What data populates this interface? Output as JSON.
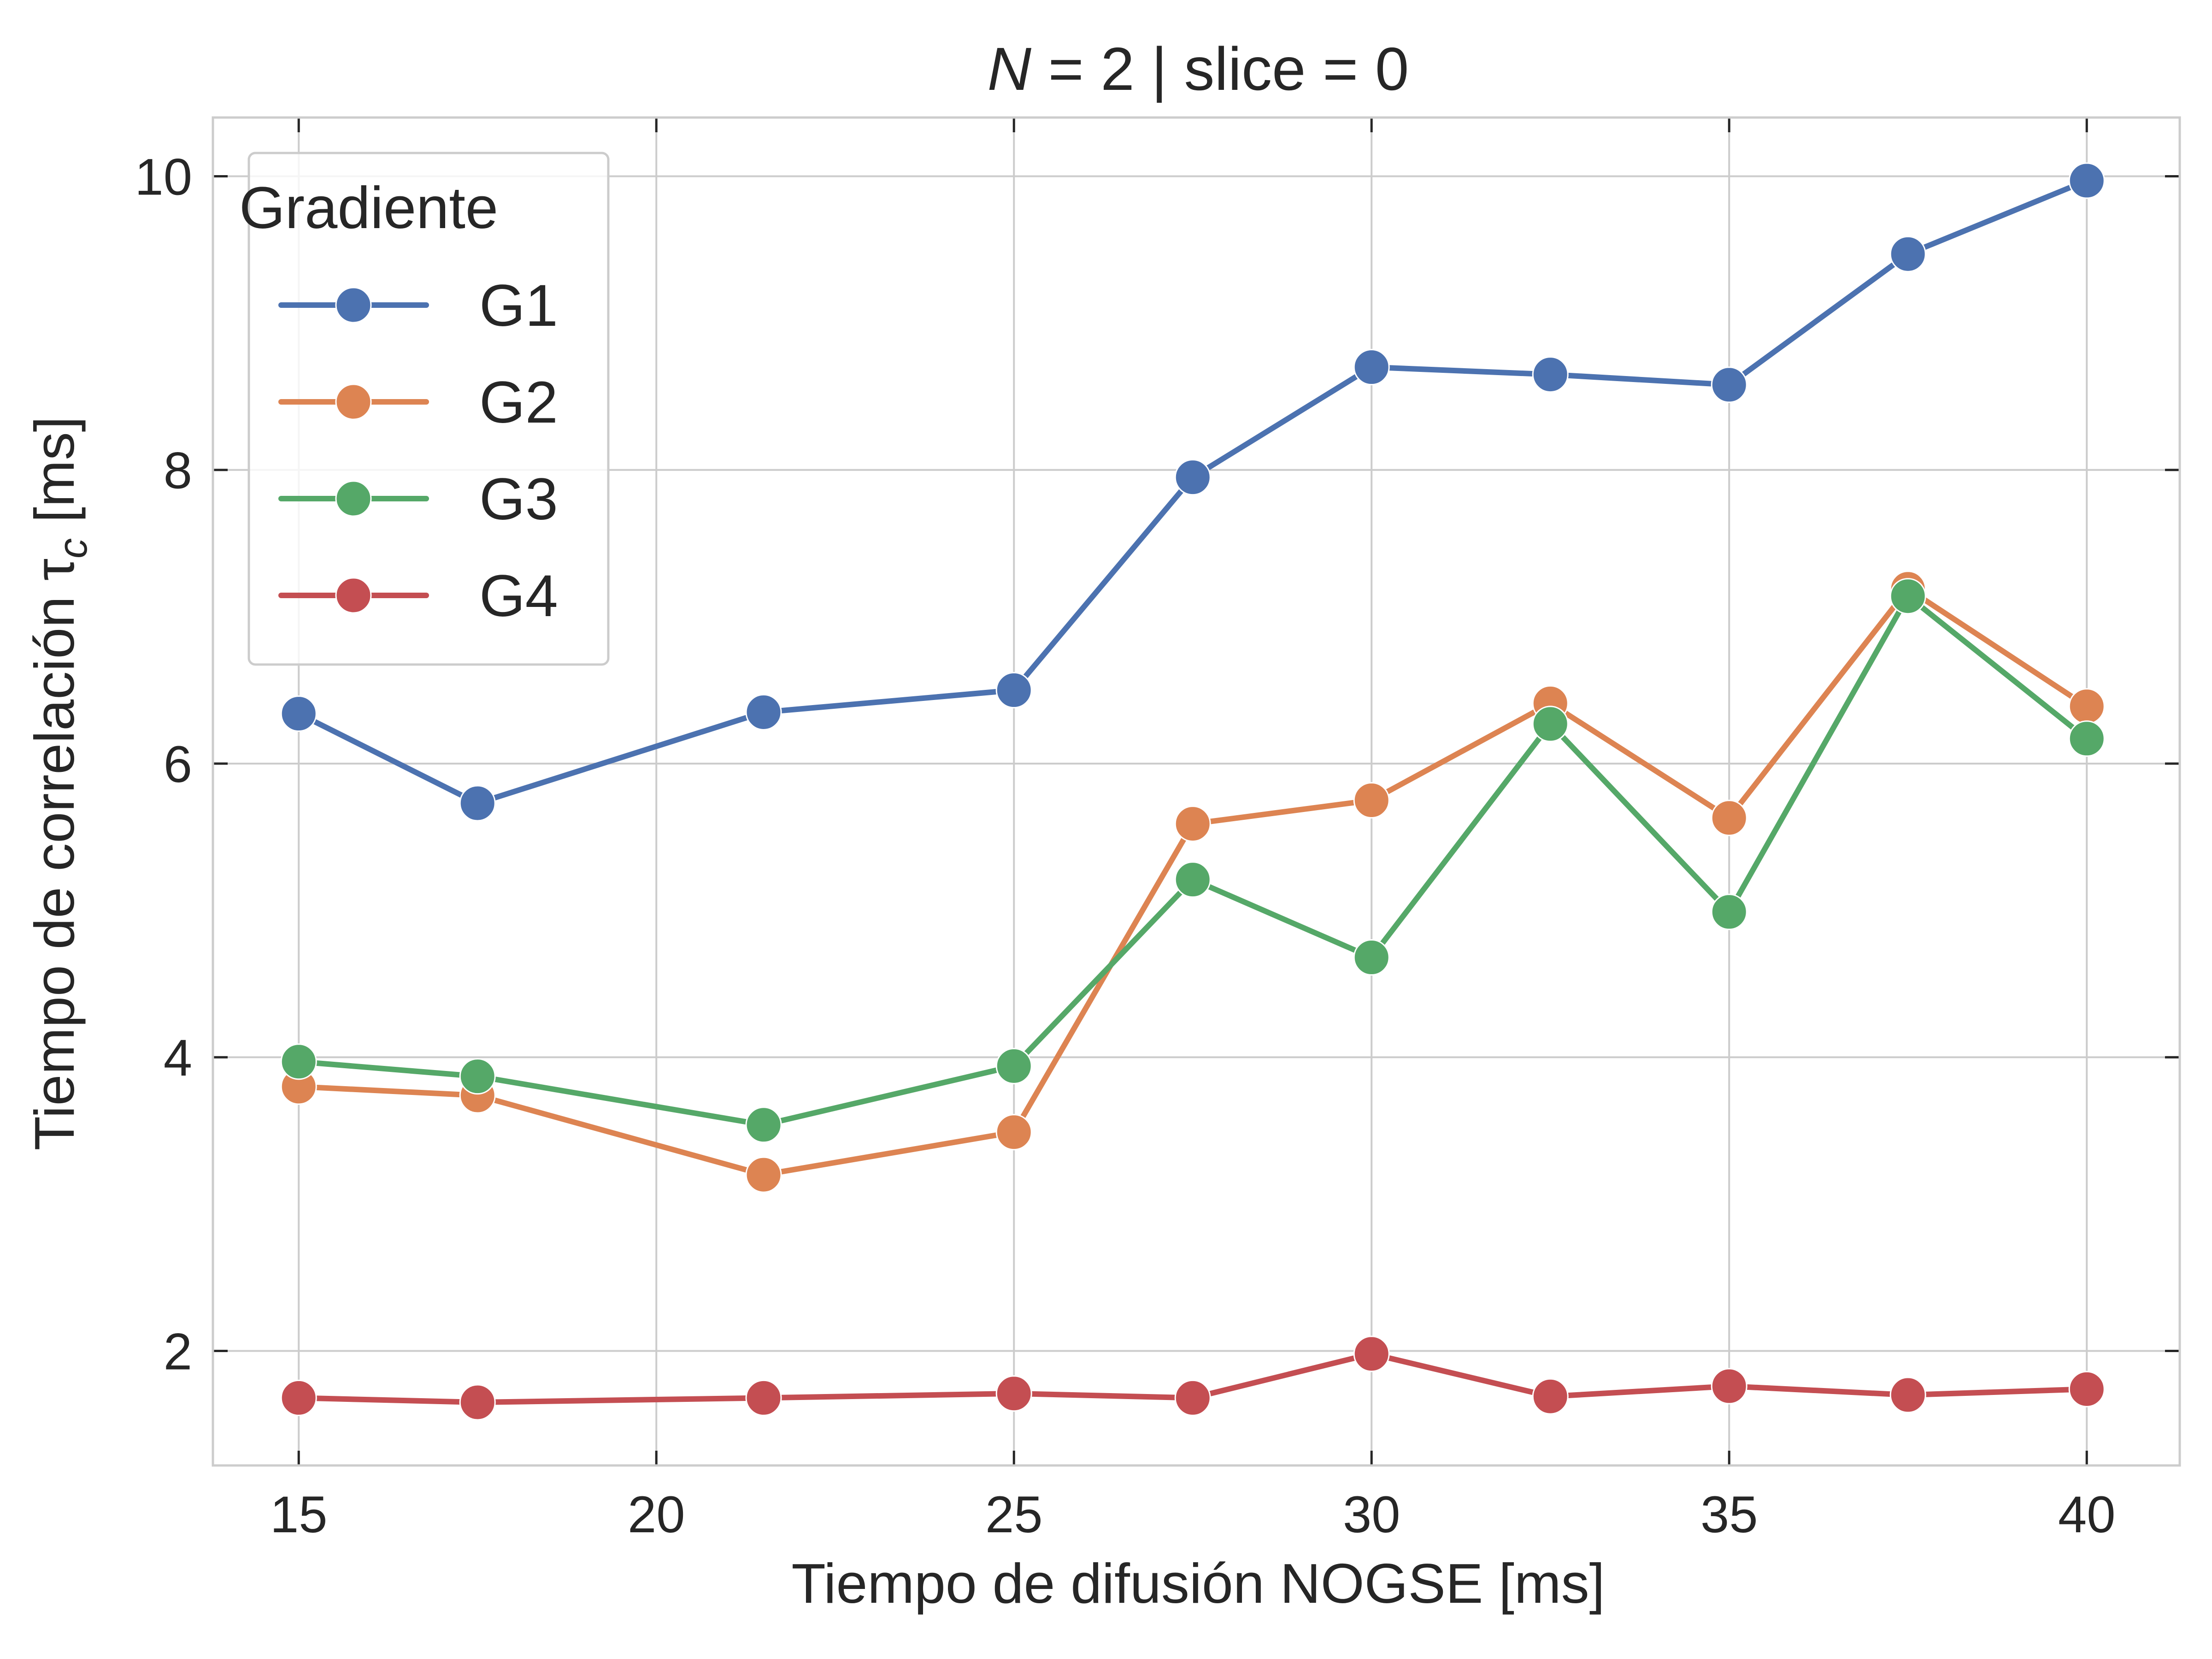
{
  "chart_data": {
    "type": "line",
    "title": {
      "italic": "N",
      "rest": " = 2 | slice = 0"
    },
    "xlabel": "Tiempo de difusión NOGSE [ms]",
    "ylabel": "Tiempo de correlación τ",
    "ylabel_sub": "c",
    "ylabel_unit": " [ms]",
    "xlim": [
      13.8,
      41.3
    ],
    "ylim": [
      1.22,
      10.4
    ],
    "xticks": [
      15,
      20,
      25,
      30,
      35,
      40
    ],
    "yticks": [
      2,
      4,
      6,
      8,
      10
    ],
    "grid": true,
    "legend": {
      "title": "Gradiente",
      "placement": "top-left"
    },
    "x": [
      15,
      17.5,
      21.5,
      25,
      27.5,
      30,
      32.5,
      35,
      37.5,
      40
    ],
    "series": [
      {
        "name": "G1",
        "color": "#4c72b0",
        "values": [
          6.34,
          5.73,
          6.35,
          6.5,
          7.95,
          8.7,
          8.65,
          8.58,
          9.47,
          9.97
        ]
      },
      {
        "name": "G2",
        "color": "#dd8452",
        "values": [
          3.8,
          3.74,
          3.2,
          3.49,
          5.59,
          5.75,
          6.41,
          5.63,
          7.19,
          6.39
        ]
      },
      {
        "name": "G3",
        "color": "#55a868",
        "values": [
          3.97,
          3.87,
          3.54,
          3.94,
          5.21,
          4.68,
          6.27,
          4.99,
          7.14,
          6.17
        ]
      },
      {
        "name": "G4",
        "color": "#c44e52",
        "values": [
          1.68,
          1.65,
          1.68,
          1.71,
          1.68,
          1.98,
          1.69,
          1.76,
          1.7,
          1.74
        ]
      }
    ]
  }
}
